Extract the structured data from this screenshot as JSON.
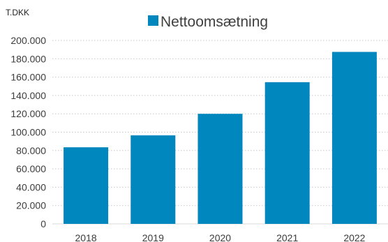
{
  "chart_data": {
    "type": "bar",
    "unit_label": "T.DKK",
    "categories": [
      "2018",
      "2019",
      "2020",
      "2021",
      "2022"
    ],
    "series": [
      {
        "name": "Nettoomsætning",
        "color": "#0087BD",
        "values": [
          83500,
          96500,
          120000,
          154500,
          187500
        ]
      }
    ],
    "ylim": [
      0,
      200000
    ],
    "yticks": [
      0,
      20000,
      40000,
      60000,
      80000,
      100000,
      120000,
      140000,
      160000,
      180000,
      200000
    ],
    "ytick_labels": [
      "0",
      "20.000",
      "40.000",
      "60.000",
      "80.000",
      "100.000",
      "120.000",
      "140.000",
      "160.000",
      "180.000",
      "200.000"
    ],
    "grid": true,
    "grid_style": "dotted",
    "legend_position": "top"
  }
}
